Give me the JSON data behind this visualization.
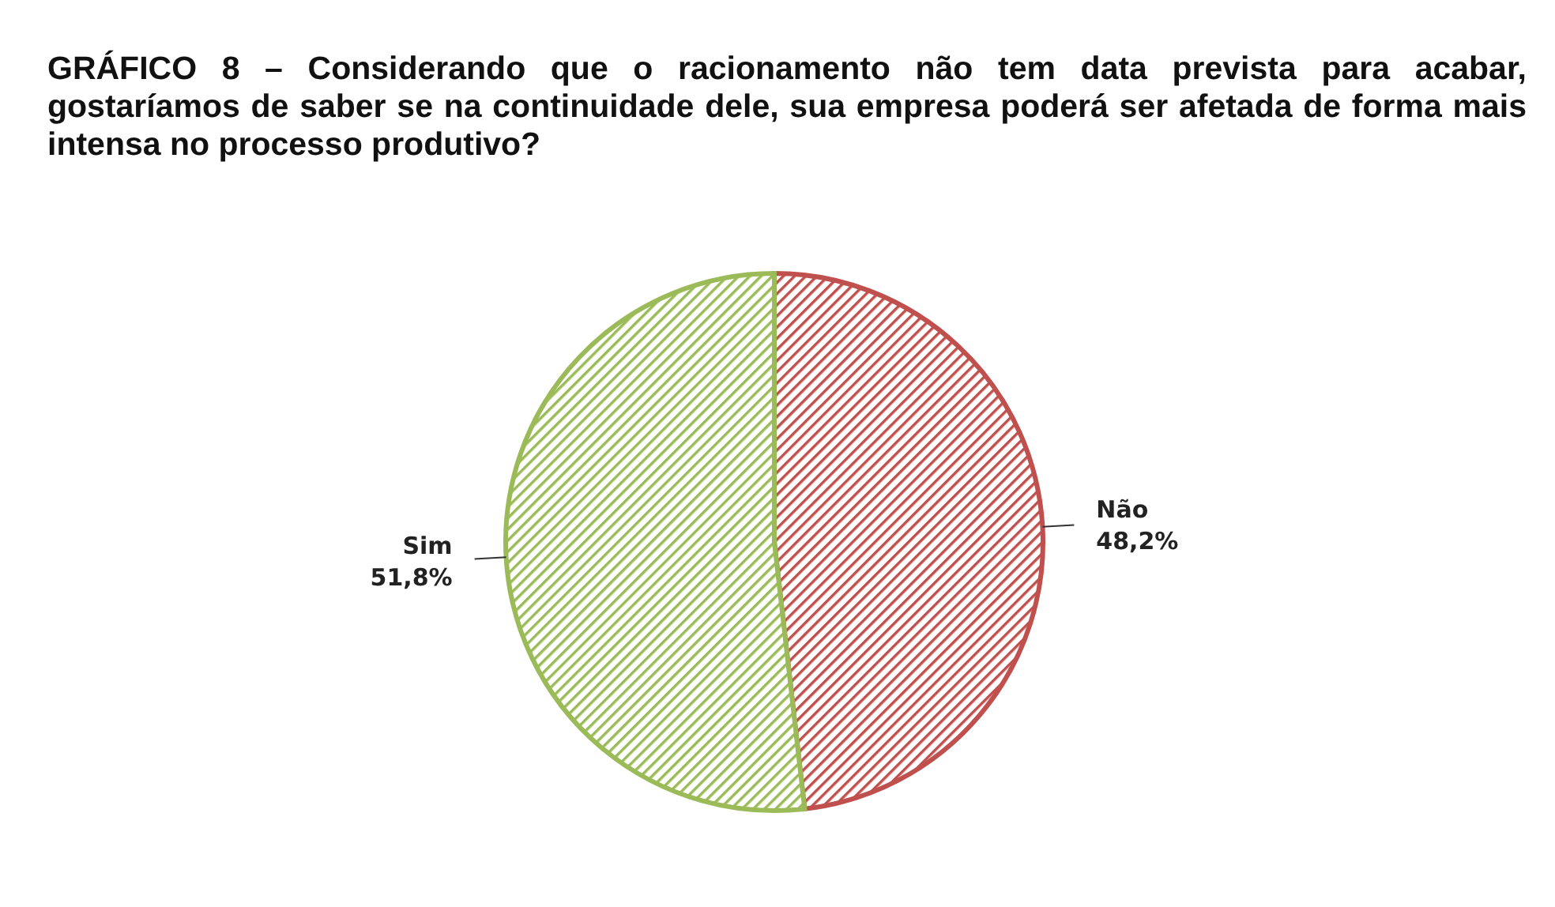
{
  "chart_data": {
    "type": "pie",
    "title": "GRÁFICO 8 – Considerando que o racionamento não tem data prevista para acabar, gostaríamos de saber se na continuidade dele, sua empresa poderá ser afetada de forma mais intensa no processo produtivo?",
    "categories": [
      "Não",
      "Sim"
    ],
    "values": [
      48.2,
      51.8
    ],
    "colors": [
      "#c0504d",
      "#9bbb59"
    ],
    "value_labels": [
      "48,2%",
      "51,8%"
    ]
  }
}
